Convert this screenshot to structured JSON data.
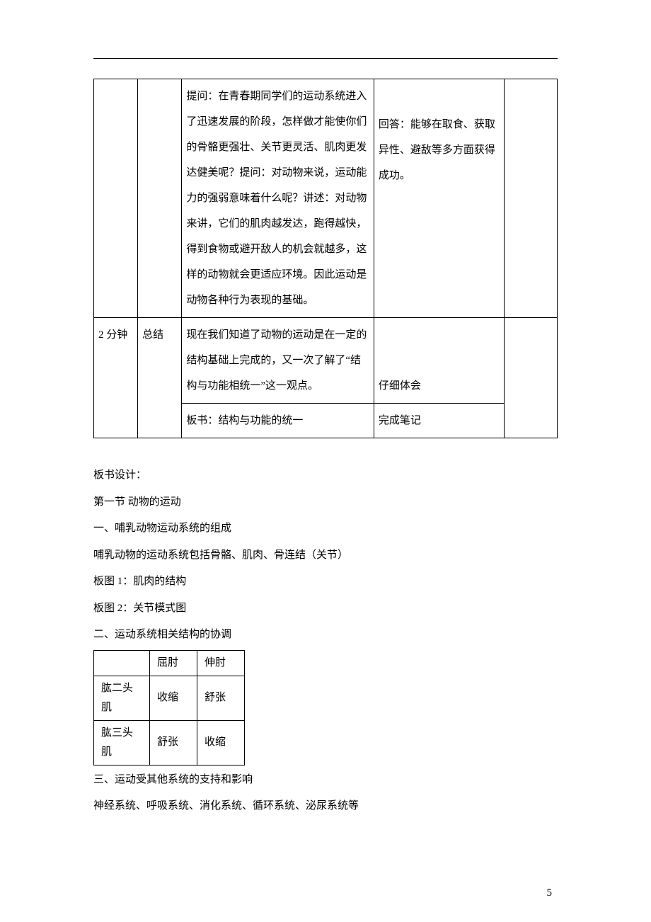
{
  "mainTable": {
    "rows": [
      {
        "time": "",
        "stage": "",
        "teacher": "提问：在青春期同学们的运动系统进入了迅速发展的阶段，怎样做才能使你们的骨骼更强壮、关节更灵活、肌肉更发达健美呢？\n提问：对动物来说，运动能力的强弱意味着什么呢？\n讲述：对动物来讲，它们的肌肉越发达，跑得越快，得到食物或避开敌人的机会就越多，这样的动物就会更适应环境。因此运动是动物各种行为表现的基础。",
        "student": "回答：能够在取食、获取异性、避敌等多方面获得成功。",
        "note": ""
      },
      {
        "time": "2 分钟",
        "stage": "总结",
        "teacher": "现在我们知道了动物的运动是在一定的结构基础上完成的，又一次了解了“结构与功能相统一”这一观点。\n板书：结构与功能的统一",
        "student": "仔细体会\n完成笔记",
        "note": ""
      }
    ]
  },
  "board": {
    "heading": "板书设计：",
    "lines": [
      "第一节 动物的运动",
      "一、哺乳动物运动系统的组成",
      "哺乳动物的运动系统包括骨骼、肌肉、骨连结（关节）",
      "板图 1：肌肉的结构",
      "板图 2：关节模式图",
      "二、运动系统相关结构的协调"
    ],
    "smallTable": {
      "header": [
        "",
        "屈肘",
        "伸肘"
      ],
      "rows": [
        [
          "肱二头肌",
          "收缩",
          "舒张"
        ],
        [
          "肱三头肌",
          "舒张",
          "收缩"
        ]
      ]
    },
    "afterLines": [
      "三、运动受其他系统的支持和影响",
      "神经系统、呼吸系统、消化系统、循环系统、泌尿系统等"
    ]
  },
  "pageNumber": "5"
}
